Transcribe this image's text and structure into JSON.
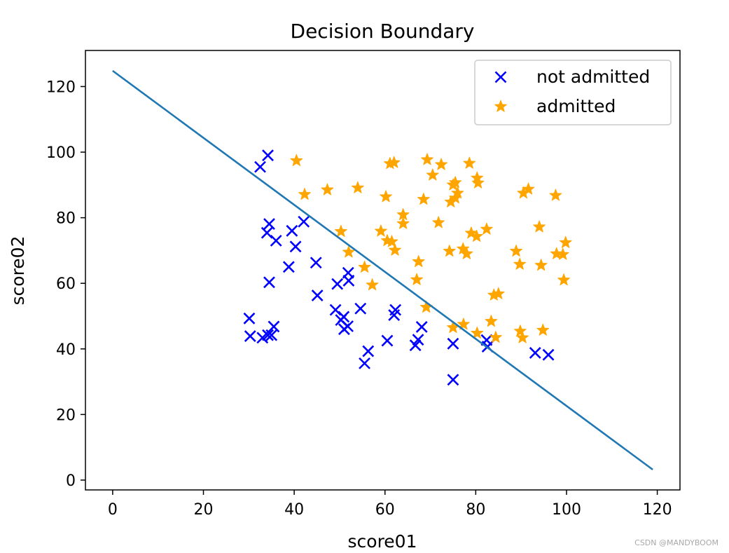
{
  "chart_data": {
    "type": "scatter",
    "title": "Decision Boundary",
    "xlabel": "score01",
    "ylabel": "score02",
    "xlim": [
      -6,
      125
    ],
    "ylim": [
      -3,
      131
    ],
    "xticks": [
      0,
      20,
      40,
      60,
      80,
      100,
      120
    ],
    "yticks": [
      0,
      20,
      40,
      60,
      80,
      100,
      120
    ],
    "grid": false,
    "legend_position": "top-right",
    "series": [
      {
        "name": "not admitted",
        "marker": "x",
        "color": "#0000ff",
        "points": [
          [
            32.5,
            95.5
          ],
          [
            34.2,
            99.0
          ],
          [
            34.5,
            78.1
          ],
          [
            34.0,
            75.4
          ],
          [
            36.0,
            73.0
          ],
          [
            39.5,
            76.0
          ],
          [
            40.3,
            71.2
          ],
          [
            42.1,
            78.8
          ],
          [
            34.5,
            60.3
          ],
          [
            38.8,
            65.0
          ],
          [
            44.8,
            66.3
          ],
          [
            45.1,
            56.3
          ],
          [
            30.1,
            49.3
          ],
          [
            30.3,
            43.9
          ],
          [
            33.0,
            43.4
          ],
          [
            34.2,
            44.2
          ],
          [
            35.0,
            44.2
          ],
          [
            35.5,
            46.8
          ],
          [
            49.5,
            59.8
          ],
          [
            51.9,
            63.2
          ],
          [
            52.0,
            60.8
          ],
          [
            54.6,
            52.3
          ],
          [
            49.1,
            51.9
          ],
          [
            50.3,
            48.8
          ],
          [
            50.9,
            49.8
          ],
          [
            51.0,
            46.0
          ],
          [
            51.8,
            46.9
          ],
          [
            55.5,
            35.6
          ],
          [
            56.3,
            39.3
          ],
          [
            60.5,
            42.5
          ],
          [
            62.0,
            50.3
          ],
          [
            62.3,
            51.9
          ],
          [
            66.7,
            41.1
          ],
          [
            67.3,
            42.8
          ],
          [
            68.1,
            46.7
          ],
          [
            75.0,
            41.6
          ],
          [
            75.0,
            30.6
          ],
          [
            82.4,
            42.7
          ],
          [
            82.6,
            40.7
          ],
          [
            93.1,
            38.8
          ],
          [
            96.0,
            38.2
          ]
        ]
      },
      {
        "name": "admitted",
        "marker": "star",
        "color": "#ffa500",
        "points": [
          [
            40.5,
            97.4
          ],
          [
            42.3,
            87.1
          ],
          [
            47.3,
            88.5
          ],
          [
            54.0,
            89.1
          ],
          [
            60.2,
            86.4
          ],
          [
            61.1,
            96.5
          ],
          [
            62.0,
            96.8
          ],
          [
            69.3,
            97.7
          ],
          [
            70.5,
            93.0
          ],
          [
            72.4,
            96.2
          ],
          [
            68.5,
            85.6
          ],
          [
            74.5,
            84.8
          ],
          [
            75.0,
            90.0
          ],
          [
            75.5,
            86.0
          ],
          [
            76.0,
            87.5
          ],
          [
            75.5,
            90.7
          ],
          [
            78.6,
            96.6
          ],
          [
            80.3,
            92.1
          ],
          [
            80.5,
            90.6
          ],
          [
            90.5,
            87.5
          ],
          [
            91.6,
            88.7
          ],
          [
            97.6,
            86.8
          ],
          [
            50.3,
            75.8
          ],
          [
            52.0,
            69.5
          ],
          [
            55.5,
            64.9
          ],
          [
            57.2,
            59.5
          ],
          [
            59.1,
            75.9
          ],
          [
            60.5,
            73.0
          ],
          [
            61.5,
            72.7
          ],
          [
            62.2,
            70.1
          ],
          [
            64.0,
            80.9
          ],
          [
            64.0,
            78.2
          ],
          [
            67.0,
            61.1
          ],
          [
            67.4,
            66.6
          ],
          [
            69.1,
            52.7
          ],
          [
            71.8,
            78.5
          ],
          [
            74.2,
            69.8
          ],
          [
            77.2,
            70.5
          ],
          [
            78.0,
            69.0
          ],
          [
            79.0,
            75.3
          ],
          [
            80.2,
            74.3
          ],
          [
            82.4,
            76.5
          ],
          [
            88.9,
            69.8
          ],
          [
            89.7,
            65.8
          ],
          [
            94.0,
            77.2
          ],
          [
            94.4,
            65.5
          ],
          [
            97.8,
            69.0
          ],
          [
            99.2,
            68.8
          ],
          [
            99.4,
            61.0
          ],
          [
            99.8,
            72.4
          ],
          [
            75.0,
            46.5
          ],
          [
            77.3,
            47.5
          ],
          [
            80.3,
            44.8
          ],
          [
            83.4,
            48.4
          ],
          [
            84.0,
            56.4
          ],
          [
            85.0,
            56.8
          ],
          [
            84.4,
            43.5
          ],
          [
            89.8,
            45.4
          ],
          [
            90.3,
            43.4
          ],
          [
            94.8,
            45.7
          ]
        ]
      }
    ],
    "lines": [
      {
        "name": "decision boundary",
        "color": "#1f77b4",
        "x": [
          0,
          119
        ],
        "y": [
          124.8,
          3.2
        ]
      }
    ]
  },
  "watermark": "CSDN @MANDYBOOM"
}
